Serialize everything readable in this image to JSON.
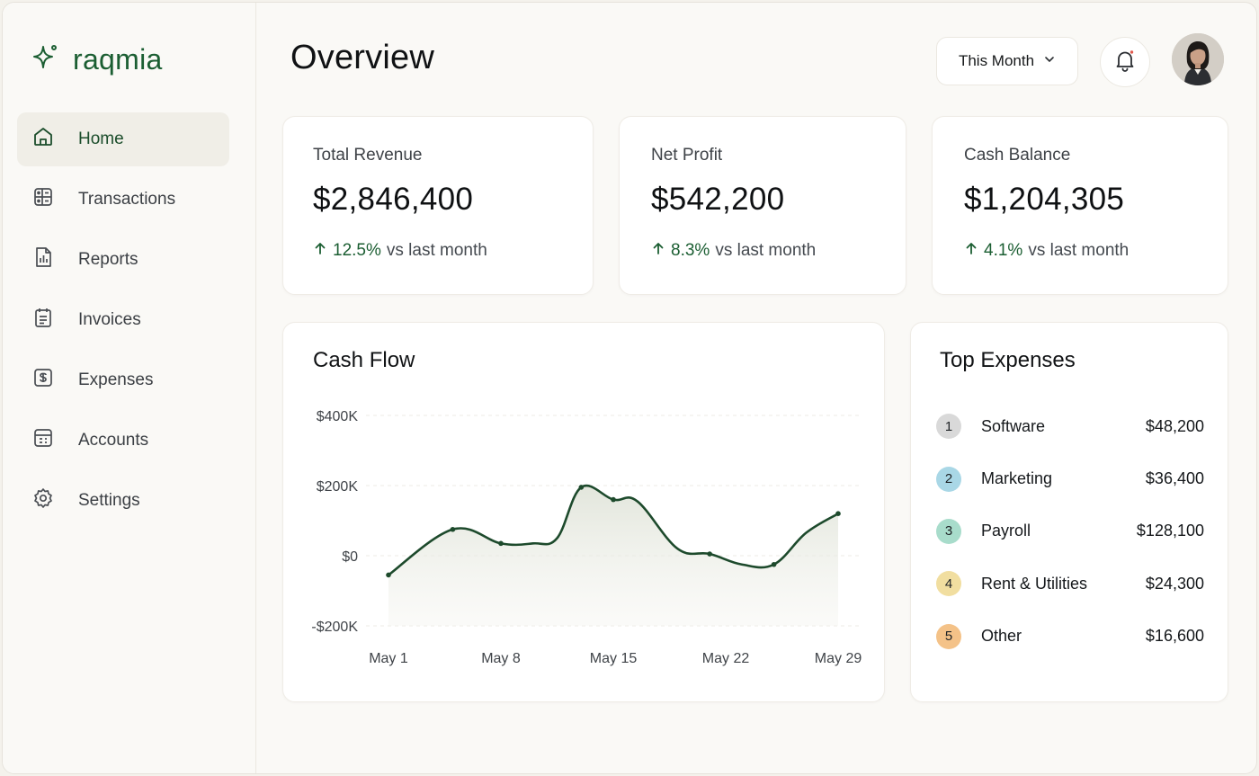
{
  "brand": {
    "name": "raqmia",
    "color": "#1b5e32"
  },
  "sidebar": {
    "items": [
      {
        "label": "Home",
        "icon": "home-icon",
        "active": true
      },
      {
        "label": "Transactions",
        "icon": "transactions-icon",
        "active": false
      },
      {
        "label": "Reports",
        "icon": "reports-icon",
        "active": false
      },
      {
        "label": "Invoices",
        "icon": "invoices-icon",
        "active": false
      },
      {
        "label": "Expenses",
        "icon": "expenses-icon",
        "active": false
      },
      {
        "label": "Accounts",
        "icon": "accounts-icon",
        "active": false
      },
      {
        "label": "Settings",
        "icon": "settings-icon",
        "active": false
      }
    ]
  },
  "header": {
    "title": "Overview",
    "period": {
      "selected": "This Month"
    },
    "notifications": {
      "has_unread": true,
      "dot_color": "#e05a4e"
    }
  },
  "kpis": [
    {
      "label": "Total Revenue",
      "value": "$2,846,400",
      "delta_pct": "12.5%",
      "delta_text": "vs last month",
      "trend": "up"
    },
    {
      "label": "Net Profit",
      "value": "$542,200",
      "delta_pct": "8.3%",
      "delta_text": "vs last month",
      "trend": "up"
    },
    {
      "label": "Cash Balance",
      "value": "$1,204,305",
      "delta_pct": "4.1%",
      "delta_text": "vs last month",
      "trend": "up"
    }
  ],
  "cashflow": {
    "title": "Cash Flow"
  },
  "chart_data": {
    "type": "area",
    "title": "Cash Flow",
    "xlabel": "",
    "ylabel": "",
    "x_tick_labels": [
      "May 1",
      "May 8",
      "May 15",
      "May 22",
      "May 29"
    ],
    "y_tick_labels": [
      "$400K",
      "$200K",
      "$0",
      "-$200K"
    ],
    "y_ticks": [
      400,
      200,
      0,
      -200
    ],
    "ylim": [
      -200,
      400
    ],
    "xlim": [
      1,
      29
    ],
    "grid": true,
    "line_color": "#1d4a2c",
    "series": [
      {
        "x": [
          1,
          5,
          8,
          10,
          11.5,
          13,
          15,
          16.5,
          19,
          21,
          23,
          25,
          27,
          29
        ],
        "values": [
          -55,
          75,
          35,
          35,
          50,
          195,
          160,
          155,
          20,
          5,
          -25,
          -25,
          65,
          120
        ]
      }
    ]
  },
  "top_expenses": {
    "title": "Top Expenses",
    "items": [
      {
        "rank": "1",
        "name": "Software",
        "amount": "$48,200",
        "color": "#d9d9d9"
      },
      {
        "rank": "2",
        "name": "Marketing",
        "amount": "$36,400",
        "color": "#a9d7e6"
      },
      {
        "rank": "3",
        "name": "Payroll",
        "amount": "$128,100",
        "color": "#a8dccb"
      },
      {
        "rank": "4",
        "name": "Rent & Utilities",
        "amount": "$24,300",
        "color": "#f1dea0"
      },
      {
        "rank": "5",
        "name": "Other",
        "amount": "$16,600",
        "color": "#f4c288"
      }
    ]
  }
}
